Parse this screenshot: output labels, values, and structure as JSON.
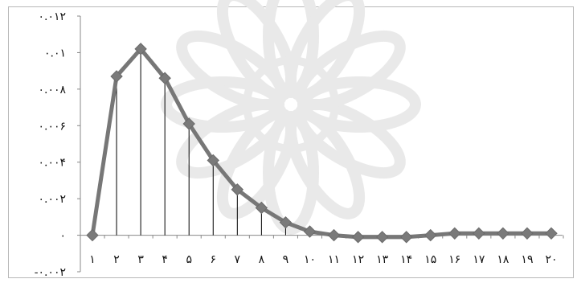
{
  "chart_data": {
    "type": "line",
    "title": "",
    "xlabel": "",
    "ylabel": "",
    "categories": [
      "۱",
      "۲",
      "۳",
      "۴",
      "۵",
      "۶",
      "۷",
      "۸",
      "۹",
      "۱۰",
      "۱۱",
      "۱۲",
      "۱۳",
      "۱۴",
      "۱۵",
      "۱۶",
      "۱۷",
      "۱۸",
      "۱۹",
      "۲۰"
    ],
    "series": [
      {
        "values": [
          0,
          0.0087,
          0.0102,
          0.0086,
          0.0061,
          0.0041,
          0.0025,
          0.0015,
          0.0007,
          0.0002,
          0.0,
          -0.0001,
          -0.0001,
          -0.0001,
          0.0,
          0.0001,
          0.0001,
          0.0001,
          0.0001,
          0.0001
        ]
      }
    ],
    "ylim": [
      -0.002,
      0.012
    ],
    "y_ticks": [
      {
        "value": 0.012,
        "label": "۰.۰۱۲"
      },
      {
        "value": 0.01,
        "label": "۰.۰۱"
      },
      {
        "value": 0.008,
        "label": "۰.۰۰۸"
      },
      {
        "value": 0.006,
        "label": "۰.۰۰۶"
      },
      {
        "value": 0.004,
        "label": "۰.۰۰۴"
      },
      {
        "value": 0.002,
        "label": "۰.۰۰۲"
      },
      {
        "value": 0,
        "label": "۰"
      },
      {
        "value": -0.002,
        "label": "-۰.۰۰۲"
      }
    ],
    "drop_lines": true,
    "grid": false,
    "legend": "none",
    "colors": {
      "line": "#777777",
      "marker": "#7a7a7a",
      "axis": "#888888",
      "drop_line": "#000000",
      "watermark": "#e9e9e9"
    }
  }
}
